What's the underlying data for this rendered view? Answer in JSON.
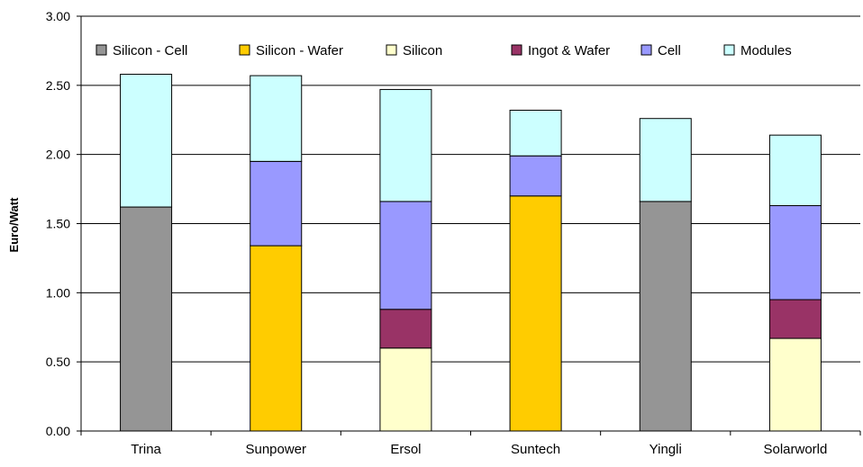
{
  "chart_data": {
    "type": "bar",
    "stacked": true,
    "categories": [
      "Trina",
      "Sunpower",
      "Ersol",
      "Suntech",
      "Yingli",
      "Solarworld"
    ],
    "ylabel": "Euro/Watt",
    "ylim": [
      0,
      3
    ],
    "yticks": [
      "0.00",
      "0.50",
      "1.00",
      "1.50",
      "2.00",
      "2.50",
      "3.00"
    ],
    "grid": true,
    "legend_position": "top",
    "series": [
      {
        "name": "Silicon - Cell",
        "color": "#959595",
        "values": [
          1.62,
          0,
          0,
          0,
          1.66,
          0
        ]
      },
      {
        "name": "Silicon - Wafer",
        "color": "#ffcc00",
        "values": [
          0,
          1.34,
          0,
          1.7,
          0,
          0
        ]
      },
      {
        "name": "Silicon",
        "color": "#ffffcc",
        "values": [
          0,
          0,
          0.6,
          0,
          0,
          0.67
        ]
      },
      {
        "name": "Ingot & Wafer",
        "color": "#993366",
        "values": [
          0,
          0,
          0.28,
          0,
          0,
          0.28
        ]
      },
      {
        "name": "Cell",
        "color": "#9999ff",
        "values": [
          0,
          0.61,
          0.78,
          0.29,
          0,
          0.68
        ]
      },
      {
        "name": "Modules",
        "color": "#ccffff",
        "values": [
          0.96,
          0.62,
          0.81,
          0.33,
          0.6,
          0.51
        ]
      }
    ]
  }
}
